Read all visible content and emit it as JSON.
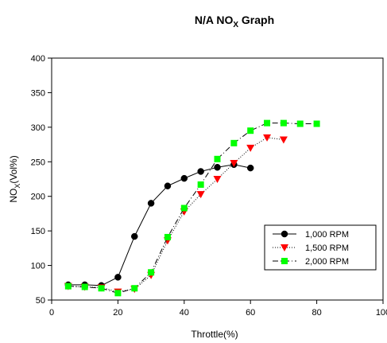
{
  "chart_data": {
    "type": "line",
    "title_main": "N/A NO",
    "title_sub": "X",
    "title_tail": " Graph",
    "xlabel": "Throttle(%)",
    "ylabel_main": "NO",
    "ylabel_sub": "X",
    "ylabel_tail": "(Vol%)",
    "xlim": [
      0,
      100
    ],
    "ylim": [
      50,
      400
    ],
    "xticks": [
      0,
      20,
      40,
      60,
      80,
      100
    ],
    "yticks": [
      50,
      100,
      150,
      200,
      250,
      300,
      350,
      400
    ],
    "grid": false,
    "legend_position": "lower-right",
    "series": [
      {
        "name": "1,000 RPM",
        "color": "#000000",
        "marker": "circle",
        "line_style": "solid",
        "x": [
          5,
          10,
          15,
          20,
          25,
          30,
          35,
          40,
          45,
          50,
          55,
          60
        ],
        "y": [
          72,
          72,
          71,
          83,
          142,
          190,
          215,
          226,
          236,
          242,
          246,
          241
        ]
      },
      {
        "name": "1,500 RPM",
        "color": "#ff0000",
        "marker": "triangle-down",
        "line_style": "dotted",
        "x": [
          5,
          10,
          15,
          20,
          25,
          30,
          35,
          40,
          45,
          50,
          55,
          60,
          65,
          70
        ],
        "y": [
          70,
          69,
          68,
          62,
          66,
          86,
          136,
          178,
          203,
          225,
          248,
          270,
          285,
          282
        ]
      },
      {
        "name": "2,000 RPM",
        "color": "#00ff00",
        "marker": "square",
        "line_style": "dash-dot",
        "x": [
          5,
          10,
          15,
          20,
          25,
          30,
          35,
          40,
          45,
          50,
          55,
          60,
          65,
          70,
          75,
          80
        ],
        "y": [
          70,
          69,
          67,
          60,
          67,
          90,
          141,
          183,
          217,
          254,
          277,
          295,
          306,
          306,
          305,
          305
        ]
      }
    ]
  }
}
